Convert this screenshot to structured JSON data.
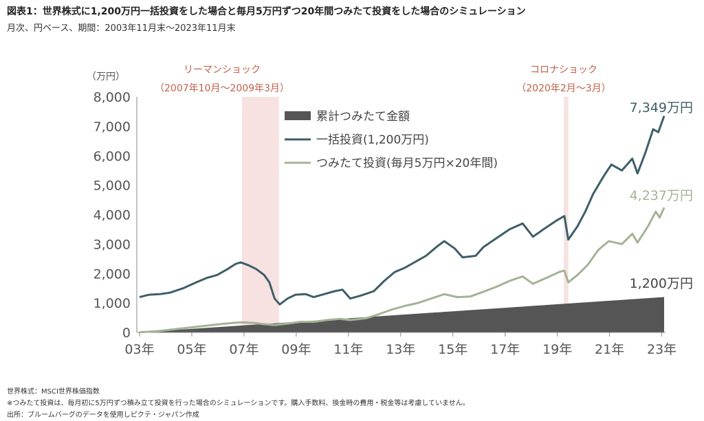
{
  "title": "図表1：世界株式に1,200万円一括投資をした場合と毎月5万円ずつ20年間つみたて投資をした場合のシミュレーション",
  "subtitle": "月次、円ベース、期間：2003年11月末〜2023年11月末",
  "footer": [
    "世界株式：MSCI世界株価指数",
    "※つみたて投資は、毎月初に5万円ずつ積み立て投資を行った場合のシミュレーションです。購入手数料、換金時の費用・税金等は考慮していません。",
    "出所：ブルームバーグのデータを使用しピクテ・ジャパン作成"
  ],
  "colors": {
    "lump_sum": "#3d5e68",
    "accumulation": "#a3b394",
    "cumulative": "#555555",
    "crisis_band": "#f6dede",
    "crisis_text": "#c0604a"
  },
  "chart_data": {
    "type": "line",
    "unit_label": "（万円）",
    "y_ticks": [
      "8,000",
      "7,000",
      "6,000",
      "5,000",
      "4,000",
      "3,000",
      "2,000",
      "1,000",
      "0"
    ],
    "x_ticks": [
      "03年",
      "05年",
      "07年",
      "09年",
      "11年",
      "13年",
      "15年",
      "17年",
      "19年",
      "21年",
      "23年"
    ],
    "ylim": [
      0,
      8000
    ],
    "xlim": [
      2003.83,
      2023.92
    ],
    "legend": [
      "累計つみたて金額",
      "一括投資(1,200万円)",
      "つみたて投資(毎月5万円×20年間)"
    ],
    "crisis_periods": [
      {
        "label": "リーマンショック",
        "range": "（2007年10月〜2009年3月）",
        "start": 2007.75,
        "end": 2009.17
      },
      {
        "label": "コロナショック",
        "range": "（2020年2月〜3月）",
        "start": 2020.08,
        "end": 2020.25
      }
    ],
    "end_labels": {
      "lump_sum": "7,349万円",
      "accumulation": "4,237万円",
      "cumulative": "1,200万円"
    },
    "series": [
      {
        "name": "一括投資(1,200万円)",
        "key": "lump_sum",
        "points": [
          [
            2003.83,
            1200
          ],
          [
            2004.2,
            1280
          ],
          [
            2004.6,
            1300
          ],
          [
            2005.0,
            1350
          ],
          [
            2005.5,
            1500
          ],
          [
            2006.0,
            1700
          ],
          [
            2006.4,
            1850
          ],
          [
            2006.8,
            1950
          ],
          [
            2007.2,
            2150
          ],
          [
            2007.5,
            2320
          ],
          [
            2007.7,
            2380
          ],
          [
            2008.0,
            2280
          ],
          [
            2008.3,
            2150
          ],
          [
            2008.6,
            1950
          ],
          [
            2008.8,
            1700
          ],
          [
            2009.0,
            1150
          ],
          [
            2009.2,
            950
          ],
          [
            2009.5,
            1150
          ],
          [
            2009.8,
            1280
          ],
          [
            2010.2,
            1300
          ],
          [
            2010.5,
            1200
          ],
          [
            2010.9,
            1300
          ],
          [
            2011.3,
            1400
          ],
          [
            2011.6,
            1450
          ],
          [
            2011.9,
            1150
          ],
          [
            2012.3,
            1250
          ],
          [
            2012.8,
            1400
          ],
          [
            2013.2,
            1750
          ],
          [
            2013.6,
            2050
          ],
          [
            2014.0,
            2200
          ],
          [
            2014.4,
            2400
          ],
          [
            2014.8,
            2600
          ],
          [
            2015.2,
            2900
          ],
          [
            2015.5,
            3100
          ],
          [
            2015.9,
            2850
          ],
          [
            2016.2,
            2550
          ],
          [
            2016.7,
            2600
          ],
          [
            2017.0,
            2900
          ],
          [
            2017.5,
            3200
          ],
          [
            2018.0,
            3500
          ],
          [
            2018.5,
            3700
          ],
          [
            2018.9,
            3250
          ],
          [
            2019.3,
            3500
          ],
          [
            2019.8,
            3800
          ],
          [
            2020.1,
            3950
          ],
          [
            2020.25,
            3150
          ],
          [
            2020.6,
            3600
          ],
          [
            2020.9,
            4100
          ],
          [
            2021.2,
            4700
          ],
          [
            2021.6,
            5300
          ],
          [
            2021.9,
            5700
          ],
          [
            2022.3,
            5500
          ],
          [
            2022.7,
            5900
          ],
          [
            2022.9,
            5400
          ],
          [
            2023.2,
            6100
          ],
          [
            2023.5,
            6900
          ],
          [
            2023.7,
            6800
          ],
          [
            2023.92,
            7349
          ]
        ]
      },
      {
        "name": "つみたて投資(毎月5万円×20年間)",
        "key": "accumulation",
        "points": [
          [
            2003.83,
            5
          ],
          [
            2004.5,
            40
          ],
          [
            2005.0,
            90
          ],
          [
            2005.5,
            140
          ],
          [
            2006.0,
            190
          ],
          [
            2006.5,
            240
          ],
          [
            2007.0,
            290
          ],
          [
            2007.5,
            330
          ],
          [
            2007.8,
            340
          ],
          [
            2008.2,
            320
          ],
          [
            2008.6,
            280
          ],
          [
            2009.0,
            250
          ],
          [
            2009.5,
            300
          ],
          [
            2010.0,
            360
          ],
          [
            2010.5,
            360
          ],
          [
            2011.0,
            420
          ],
          [
            2011.5,
            460
          ],
          [
            2011.9,
            420
          ],
          [
            2012.5,
            480
          ],
          [
            2013.0,
            620
          ],
          [
            2013.5,
            780
          ],
          [
            2014.0,
            900
          ],
          [
            2014.5,
            1000
          ],
          [
            2015.0,
            1150
          ],
          [
            2015.5,
            1300
          ],
          [
            2016.0,
            1200
          ],
          [
            2016.5,
            1220
          ],
          [
            2017.0,
            1380
          ],
          [
            2017.5,
            1550
          ],
          [
            2018.0,
            1750
          ],
          [
            2018.5,
            1900
          ],
          [
            2018.9,
            1650
          ],
          [
            2019.4,
            1850
          ],
          [
            2019.9,
            2050
          ],
          [
            2020.1,
            2100
          ],
          [
            2020.25,
            1700
          ],
          [
            2020.6,
            1950
          ],
          [
            2021.0,
            2300
          ],
          [
            2021.4,
            2800
          ],
          [
            2021.8,
            3100
          ],
          [
            2022.3,
            3000
          ],
          [
            2022.7,
            3350
          ],
          [
            2022.9,
            3050
          ],
          [
            2023.3,
            3600
          ],
          [
            2023.6,
            4100
          ],
          [
            2023.75,
            3900
          ],
          [
            2023.92,
            4237
          ]
        ]
      },
      {
        "name": "累計つみたて金額",
        "key": "cumulative",
        "points": [
          [
            2003.83,
            0
          ],
          [
            2023.92,
            1200
          ]
        ]
      }
    ]
  }
}
